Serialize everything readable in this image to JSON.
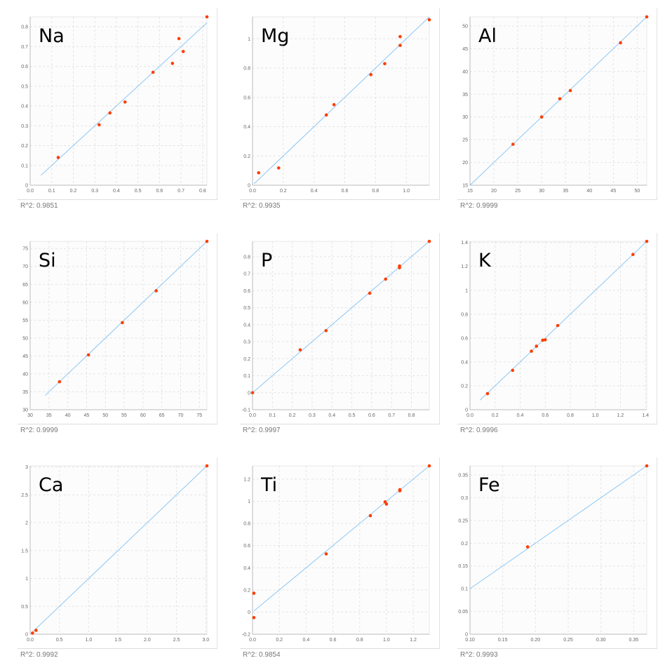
{
  "chart_data": [
    {
      "type": "scatter",
      "title": "Na",
      "r2_label": "R^2:  0.9851",
      "xlim": [
        0,
        0.82
      ],
      "ylim": [
        0,
        0.85
      ],
      "xticks": [
        0,
        0.1,
        0.2,
        0.3,
        0.4,
        0.5,
        0.6,
        0.7,
        0.8
      ],
      "xtick_labels": [
        "0.0",
        "0.1",
        "0.2",
        "0.3",
        "0.4",
        "0.5",
        "0.6",
        "0.7",
        "0.8"
      ],
      "yticks": [
        0,
        0.1,
        0.2,
        0.3,
        0.4,
        0.5,
        0.6,
        0.7,
        0.8
      ],
      "ytick_labels": [
        "0",
        "0.1",
        "0.2",
        "0.3",
        "0.4",
        "0.5",
        "0.6",
        "0.7",
        "0.8"
      ],
      "fit_line": [
        [
          0.05,
          0.05
        ],
        [
          0.82,
          0.82
        ]
      ],
      "points": [
        [
          0.13,
          0.14
        ],
        [
          0.32,
          0.305
        ],
        [
          0.37,
          0.365
        ],
        [
          0.44,
          0.42
        ],
        [
          0.57,
          0.57
        ],
        [
          0.66,
          0.615
        ],
        [
          0.69,
          0.74
        ],
        [
          0.71,
          0.675
        ],
        [
          0.82,
          0.85
        ]
      ]
    },
    {
      "type": "scatter",
      "title": "Mg",
      "r2_label": "R^2:  0.9935",
      "xlim": [
        0,
        1.15
      ],
      "ylim": [
        0,
        1.15
      ],
      "xticks": [
        0,
        0.2,
        0.4,
        0.6,
        0.8,
        1.0
      ],
      "xtick_labels": [
        "0.0",
        "0.2",
        "0.4",
        "0.6",
        "0.8",
        "1.0"
      ],
      "yticks": [
        0,
        0.2,
        0.4,
        0.6,
        0.8,
        1
      ],
      "ytick_labels": [
        "0",
        "0.2",
        "0.4",
        "0.6",
        "0.8",
        "1"
      ],
      "fit_line": [
        [
          0.01,
          0.01
        ],
        [
          1.15,
          1.15
        ]
      ],
      "points": [
        [
          0.04,
          0.085
        ],
        [
          0.17,
          0.118
        ],
        [
          0.48,
          0.48
        ],
        [
          0.53,
          0.55
        ],
        [
          0.77,
          0.755
        ],
        [
          0.86,
          0.83
        ],
        [
          0.96,
          1.015
        ],
        [
          0.96,
          0.955
        ],
        [
          1.15,
          1.13
        ]
      ]
    },
    {
      "type": "scatter",
      "title": "Al",
      "r2_label": "R^2:  0.9999",
      "xlim": [
        15,
        52
      ],
      "ylim": [
        15,
        52
      ],
      "xticks": [
        15,
        20,
        25,
        30,
        35,
        40,
        45,
        50
      ],
      "xtick_labels": [
        "15",
        "20",
        "25",
        "30",
        "35",
        "40",
        "45",
        "50"
      ],
      "yticks": [
        15,
        20,
        25,
        30,
        35,
        40,
        45,
        50
      ],
      "ytick_labels": [
        "15",
        "20",
        "25",
        "30",
        "35",
        "40",
        "45",
        "50"
      ],
      "fit_line": [
        [
          15,
          15
        ],
        [
          52,
          52
        ]
      ],
      "points": [
        [
          24,
          24
        ],
        [
          30,
          30
        ],
        [
          33.8,
          34
        ],
        [
          36,
          35.8
        ],
        [
          46.5,
          46.3
        ],
        [
          52,
          52
        ]
      ]
    },
    {
      "type": "scatter",
      "title": "Si",
      "r2_label": "R^2:  0.9999",
      "xlim": [
        30,
        77
      ],
      "ylim": [
        30,
        77
      ],
      "xticks": [
        30,
        35,
        40,
        45,
        50,
        55,
        60,
        65,
        70,
        75
      ],
      "xtick_labels": [
        "30",
        "35",
        "40",
        "45",
        "50",
        "55",
        "60",
        "65",
        "70",
        "75"
      ],
      "yticks": [
        30,
        35,
        40,
        45,
        50,
        55,
        60,
        65,
        70,
        75
      ],
      "ytick_labels": [
        "30",
        "35",
        "40",
        "45",
        "50",
        "55",
        "60",
        "65",
        "70",
        "75"
      ],
      "fit_line": [
        [
          34,
          34
        ],
        [
          77,
          77
        ]
      ],
      "points": [
        [
          37.8,
          37.8
        ],
        [
          45.5,
          45.3
        ],
        [
          54.5,
          54.3
        ],
        [
          63.5,
          63.2
        ],
        [
          77,
          77
        ]
      ]
    },
    {
      "type": "scatter",
      "title": "P",
      "r2_label": "R^2:  0.9997",
      "xlim": [
        0,
        0.89
      ],
      "ylim": [
        -0.1,
        0.89
      ],
      "xticks": [
        0,
        0.1,
        0.2,
        0.3,
        0.4,
        0.5,
        0.6,
        0.7,
        0.8
      ],
      "xtick_labels": [
        "0.0",
        "0.1",
        "0.2",
        "0.3",
        "0.4",
        "0.5",
        "0.6",
        "0.7",
        "0.8"
      ],
      "yticks": [
        -0.1,
        0,
        0.1,
        0.2,
        0.3,
        0.4,
        0.5,
        0.6,
        0.7,
        0.8
      ],
      "ytick_labels": [
        "-0.1",
        "0",
        "0.1",
        "0.2",
        "0.3",
        "0.4",
        "0.5",
        "0.6",
        "0.7",
        "0.8"
      ],
      "fit_line": [
        [
          0,
          0
        ],
        [
          0.89,
          0.89
        ]
      ],
      "points": [
        [
          0,
          0
        ],
        [
          0.24,
          0.252
        ],
        [
          0.37,
          0.365
        ],
        [
          0.59,
          0.585
        ],
        [
          0.67,
          0.668
        ],
        [
          0.74,
          0.745
        ],
        [
          0.74,
          0.735
        ],
        [
          0.89,
          0.89
        ]
      ]
    },
    {
      "type": "scatter",
      "title": "K",
      "r2_label": "R^2:  0.9996",
      "xlim": [
        0,
        1.41
      ],
      "ylim": [
        0,
        1.41
      ],
      "xticks": [
        0,
        0.2,
        0.4,
        0.6,
        0.8,
        1.0,
        1.2,
        1.4
      ],
      "xtick_labels": [
        "0.0",
        "0.2",
        "0.4",
        "0.6",
        "0.8",
        "1.0",
        "1.2",
        "1.4"
      ],
      "yticks": [
        0,
        0.2,
        0.4,
        0.6,
        0.8,
        1,
        1.2,
        1.4
      ],
      "ytick_labels": [
        "0",
        "0.2",
        "0.4",
        "0.6",
        "0.8",
        "1",
        "1.2",
        "1.4"
      ],
      "fit_line": [
        [
          0.08,
          0.08
        ],
        [
          1.41,
          1.41
        ]
      ],
      "points": [
        [
          0.14,
          0.135
        ],
        [
          0.34,
          0.33
        ],
        [
          0.49,
          0.49
        ],
        [
          0.53,
          0.532
        ],
        [
          0.58,
          0.582
        ],
        [
          0.6,
          0.585
        ],
        [
          0.7,
          0.705
        ],
        [
          1.3,
          1.3
        ],
        [
          1.41,
          1.41
        ]
      ]
    },
    {
      "type": "scatter",
      "title": "Ca",
      "r2_label": "R^2:  0.9992",
      "xlim": [
        0,
        3.02
      ],
      "ylim": [
        0,
        3.02
      ],
      "xticks": [
        0,
        0.5,
        1,
        1.5,
        2,
        2.5,
        3
      ],
      "xtick_labels": [
        "0.0",
        "0.5",
        "1.0",
        "1.5",
        "2.0",
        "2.5",
        "3.0"
      ],
      "yticks": [
        0,
        0.5,
        1,
        1.5,
        2,
        2.5,
        3
      ],
      "ytick_labels": [
        "0",
        "0.5",
        "1",
        "1.5",
        "2",
        "2.5",
        "3"
      ],
      "fit_line": [
        [
          0.03,
          0.03
        ],
        [
          3.02,
          3.02
        ]
      ],
      "points": [
        [
          0.04,
          0.02
        ],
        [
          0.1,
          0.07
        ],
        [
          3.02,
          3.02
        ]
      ]
    },
    {
      "type": "scatter",
      "title": "Ti",
      "r2_label": "R^2:  0.9854",
      "xlim": [
        0,
        1.32
      ],
      "ylim": [
        -0.2,
        1.32
      ],
      "xticks": [
        0,
        0.2,
        0.4,
        0.6,
        0.8,
        1.0,
        1.2
      ],
      "xtick_labels": [
        "0.0",
        "0.2",
        "0.4",
        "0.6",
        "0.8",
        "1.0",
        "1.2"
      ],
      "yticks": [
        -0.2,
        0,
        0.2,
        0.4,
        0.6,
        0.8,
        1,
        1.2
      ],
      "ytick_labels": [
        "-0.2",
        "0",
        "0.2",
        "0.4",
        "0.6",
        "0.8",
        "1",
        "1.2"
      ],
      "fit_line": [
        [
          0.01,
          0.01
        ],
        [
          1.32,
          1.32
        ]
      ],
      "points": [
        [
          0.01,
          0.17
        ],
        [
          0.01,
          -0.05
        ],
        [
          0.55,
          0.525
        ],
        [
          0.88,
          0.87
        ],
        [
          0.99,
          0.995
        ],
        [
          1.0,
          0.975
        ],
        [
          1.1,
          1.095
        ],
        [
          1.1,
          1.105
        ],
        [
          1.32,
          1.32
        ]
      ]
    },
    {
      "type": "scatter",
      "title": "Fe",
      "r2_label": "R^2:  0.9993",
      "xlim": [
        0.1,
        0.37
      ],
      "ylim": [
        0,
        0.37
      ],
      "xticks": [
        0.1,
        0.15,
        0.2,
        0.25,
        0.3,
        0.35
      ],
      "xtick_labels": [
        "0.10",
        "0.15",
        "0.20",
        "0.25",
        "0.30",
        "0.35"
      ],
      "yticks": [
        0,
        0.05,
        0.1,
        0.15,
        0.2,
        0.25,
        0.3,
        0.35
      ],
      "ytick_labels": [
        "0",
        "0.05",
        "0.1",
        "0.15",
        "0.2",
        "0.25",
        "0.3",
        "0.35"
      ],
      "fit_line": [
        [
          0.1,
          0.1
        ],
        [
          0.37,
          0.37
        ]
      ],
      "points": [
        [
          0.188,
          0.192
        ],
        [
          0.37,
          0.37
        ]
      ]
    }
  ],
  "colors": {
    "point": "#ff3d00",
    "line": "#8cc8f5",
    "grid": "#e4e4e4",
    "plot_bg": "#fcfcfc"
  }
}
